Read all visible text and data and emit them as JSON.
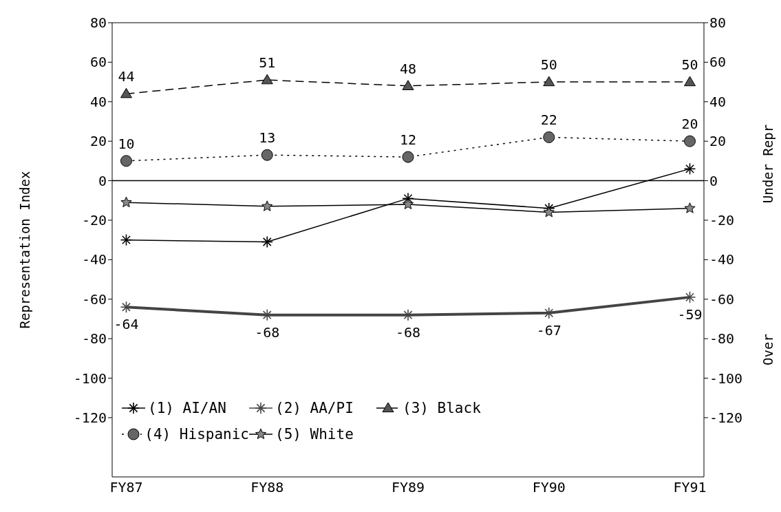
{
  "chart_data": {
    "type": "line",
    "ylabel": "Representation Index",
    "y2label": "Under Repr",
    "annotations": [
      "Over"
    ],
    "categories": [
      "FY87",
      "FY88",
      "FY89",
      "FY90",
      "FY91"
    ],
    "series": [
      {
        "name": "(1) AI/AN",
        "color": "#000000",
        "marker": "cross",
        "line_style": "solid",
        "values": [
          -30,
          -31,
          -9,
          -14,
          6
        ]
      },
      {
        "name": "(2) AA/PI",
        "color": "#444444",
        "marker": "cross",
        "line_style": "solid",
        "values": [
          -64,
          -68,
          -68,
          -67,
          -59
        ],
        "value_labels": [
          "-64",
          "-68",
          "-68",
          "-67",
          "-59"
        ]
      },
      {
        "name": "(3) Black",
        "color": "#000000",
        "marker": "triangle",
        "line_style": "dashed",
        "values": [
          44,
          51,
          48,
          50,
          50
        ],
        "value_labels": [
          "44",
          "51",
          "48",
          "50",
          "50"
        ]
      },
      {
        "name": "(4) Hispanic",
        "color": "#000000",
        "marker": "circle",
        "line_style": "dotted",
        "values": [
          10,
          13,
          12,
          22,
          20
        ],
        "value_labels": [
          "10",
          "13",
          "12",
          "22",
          "20"
        ]
      },
      {
        "name": "(5) White",
        "color": "#000000",
        "marker": "star",
        "line_style": "solid",
        "values": [
          -11,
          -13,
          -12,
          -16,
          -14
        ]
      }
    ],
    "ylim": [
      -150,
      80
    ],
    "yticks": [
      -120,
      -100,
      -80,
      -60,
      -40,
      -20,
      0,
      20,
      40,
      60,
      80
    ],
    "y2lim": [
      -150,
      80
    ],
    "y2ticks": [
      -120,
      -100,
      -80,
      -60,
      -40,
      -20,
      0,
      20,
      40,
      60,
      80
    ],
    "ref_lines": [
      {
        "axis": "y",
        "value": 0,
        "color": "#000000"
      }
    ],
    "grid": false,
    "legend": "bottom left"
  }
}
